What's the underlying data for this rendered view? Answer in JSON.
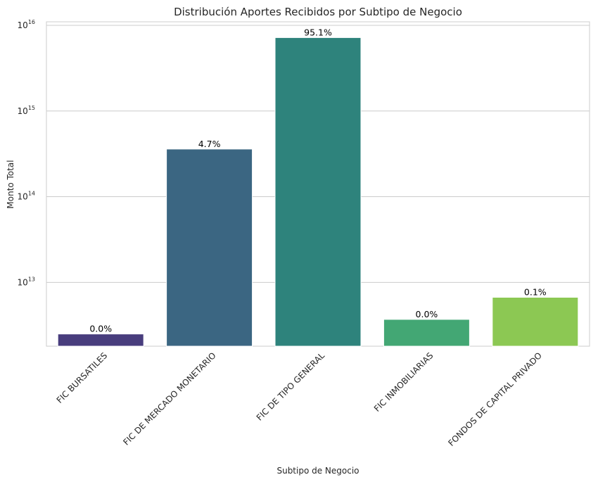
{
  "chart_data": {
    "type": "bar",
    "title": "Distribución Aportes Recibidos por Subtipo de Negocio",
    "xlabel": "Subtipo de Negocio",
    "ylabel": "Monto Total",
    "yscale": "log",
    "ylim": [
      1800000000000.0,
      1.1e+16
    ],
    "yticks": [
      {
        "value": 10000000000000.0,
        "base": "10",
        "exp": "13"
      },
      {
        "value": 100000000000000.0,
        "base": "10",
        "exp": "14"
      },
      {
        "value": 1000000000000000.0,
        "base": "10",
        "exp": "15"
      },
      {
        "value": 1e+16,
        "base": "10",
        "exp": "16"
      }
    ],
    "categories": [
      "FIC BURSATILES",
      "FIC DE MERCADO MONETARIO",
      "FIC DE TIPO GENERAL",
      "FIC INMOBILIARIAS",
      "FONDOS DE CAPITAL PRIVADO"
    ],
    "values": [
      2500000000000.0,
      360000000000000.0,
      7200000000000000.0,
      3700000000000.0,
      6700000000000.0
    ],
    "data_labels": [
      "0.0%",
      "4.7%",
      "95.1%",
      "0.0%",
      "0.1%"
    ],
    "colors": [
      "#483d7d",
      "#3b6682",
      "#2e837c",
      "#43a774",
      "#8cc853"
    ],
    "grid": true,
    "legend": "none"
  }
}
